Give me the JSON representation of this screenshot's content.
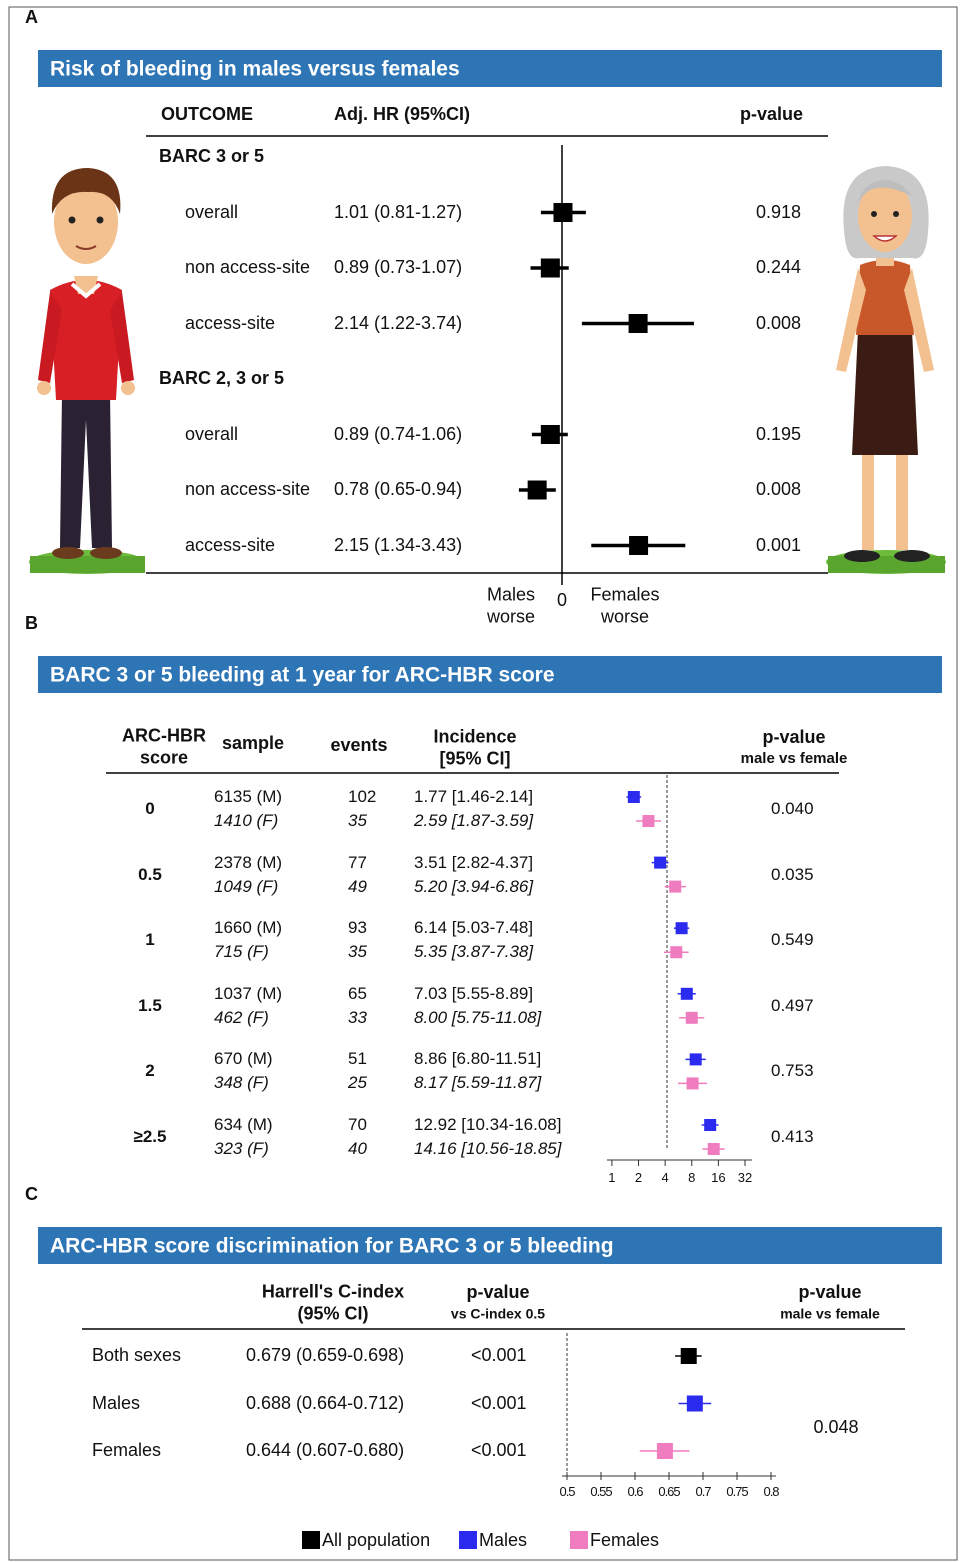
{
  "chart_data": [
    {
      "type": "forest",
      "panel_label": "A",
      "title": "Risk of bleeding in males versus females",
      "header_color": "#2e75b6",
      "columns": [
        "OUTCOME",
        "Adj. HR (95%CI)",
        "p-value"
      ],
      "log_scale": true,
      "xlim": [
        0.2,
        5
      ],
      "xticks": [
        {
          "value": 1,
          "label": "0"
        }
      ],
      "x_label_left": "Males worse",
      "x_label_right": "Females worse",
      "color": "#000000",
      "groups": [
        {
          "name": "BARC 3 or 5",
          "categories": [
            "overall",
            "non access-site",
            "access-site"
          ],
          "values": [
            1.01,
            0.89,
            2.14
          ],
          "ci_low": [
            0.81,
            0.73,
            1.22
          ],
          "ci_high": [
            1.27,
            1.07,
            3.74
          ],
          "value_labels": [
            "1.01 (0.81-1.27)",
            "0.89 (0.73-1.07)",
            "2.14 (1.22-3.74)"
          ],
          "p_values": [
            "0.918",
            "0.244",
            "0.008"
          ]
        },
        {
          "name": "BARC 2, 3 or 5",
          "categories": [
            "overall",
            "non access-site",
            "access-site"
          ],
          "values": [
            0.89,
            0.78,
            2.15
          ],
          "ci_low": [
            0.74,
            0.65,
            1.34
          ],
          "ci_high": [
            1.06,
            0.94,
            3.43
          ],
          "value_labels": [
            "0.89 (0.74-1.06)",
            "0.78 (0.65-0.94)",
            "2.15 (1.34-3.43)"
          ],
          "p_values": [
            "0.195",
            "0.008",
            "0.001"
          ]
        }
      ]
    },
    {
      "type": "forest",
      "panel_label": "B",
      "title": "BARC 3 or 5 bleeding at 1 year for ARC-HBR score",
      "header_color": "#2e75b6",
      "columns": [
        "ARC-HBR score",
        "sample",
        "events",
        "Incidence [95% CI]"
      ],
      "p_value_header": "p-value",
      "p_value_subheader": "male vs female",
      "log_scale": true,
      "xlim": [
        0.88,
        38.4
      ],
      "xticks": [
        1,
        2,
        4,
        8,
        16,
        32
      ],
      "reference_line": 4.2,
      "categories": [
        "0",
        "0.5",
        "1",
        "1.5",
        "2",
        "≥2.5"
      ],
      "series": [
        {
          "name": "Males",
          "color": "#2b2bf0",
          "samples": [
            "6135 (M)",
            "2378 (M)",
            "1660 (M)",
            "1037 (M)",
            "670 (M)",
            "634 (M)"
          ],
          "events": [
            102,
            77,
            93,
            65,
            51,
            70
          ],
          "values": [
            1.77,
            3.51,
            6.14,
            7.03,
            8.86,
            12.92
          ],
          "ci_low": [
            1.46,
            2.82,
            5.03,
            5.55,
            6.8,
            10.34
          ],
          "ci_high": [
            2.14,
            4.37,
            7.48,
            8.89,
            11.51,
            16.08
          ],
          "value_labels": [
            "1.77 [1.46-2.14]",
            "3.51 [2.82-4.37]",
            "6.14 [5.03-7.48]",
            "7.03 [5.55-8.89]",
            "8.86 [6.80-11.51]",
            "12.92 [10.34-16.08]"
          ]
        },
        {
          "name": "Females",
          "color": "#f07cc0",
          "samples": [
            "1410 (F)",
            "1049 (F)",
            "715 (F)",
            "462 (F)",
            "348 (F)",
            "323 (F)"
          ],
          "events": [
            35,
            49,
            35,
            33,
            25,
            40
          ],
          "values": [
            2.59,
            5.2,
            5.35,
            8.0,
            8.17,
            14.16
          ],
          "ci_low": [
            1.87,
            3.94,
            3.87,
            5.75,
            5.59,
            10.56
          ],
          "ci_high": [
            3.59,
            6.86,
            7.38,
            11.08,
            11.87,
            18.85
          ],
          "value_labels": [
            "2.59 [1.87-3.59]",
            "5.20 [3.94-6.86]",
            "5.35 [3.87-7.38]",
            "8.00 [5.75-11.08]",
            "8.17 [5.59-11.87]",
            "14.16 [10.56-18.85]"
          ]
        }
      ],
      "p_values": [
        "0.040",
        "0.035",
        "0.549",
        "0.497",
        "0.753",
        "0.413"
      ]
    },
    {
      "type": "forest",
      "panel_label": "C",
      "title": "ARC-HBR score discrimination for BARC 3 or 5 bleeding",
      "header_color": "#2e75b6",
      "columns": [
        "Harrell's C-index (95% CI)",
        "p-value",
        "vs C-index 0.5",
        "p-value",
        "male vs female"
      ],
      "log_scale": false,
      "xlim": [
        0.5,
        0.8
      ],
      "xticks": [
        0.5,
        0.55,
        0.6,
        0.65,
        0.7,
        0.75,
        0.8
      ],
      "reference_line": 0.5,
      "categories": [
        "Both sexes",
        "Males",
        "Females"
      ],
      "colors": [
        "#000000",
        "#2b2bf0",
        "#f07cc0"
      ],
      "values": [
        0.679,
        0.688,
        0.644
      ],
      "ci_low": [
        0.659,
        0.664,
        0.607
      ],
      "ci_high": [
        0.698,
        0.712,
        0.68
      ],
      "value_labels": [
        "0.679 (0.659-0.698)",
        "0.688 (0.664-0.712)",
        "0.644 (0.607-0.680)"
      ],
      "p_values": [
        "<0.001",
        "<0.001",
        "<0.001"
      ],
      "p_value_male_vs_female": "0.048",
      "legend": [
        {
          "name": "All population",
          "color": "#000000"
        },
        {
          "name": "Males",
          "color": "#2b2bf0"
        },
        {
          "name": "Females",
          "color": "#f07cc0"
        }
      ]
    }
  ]
}
